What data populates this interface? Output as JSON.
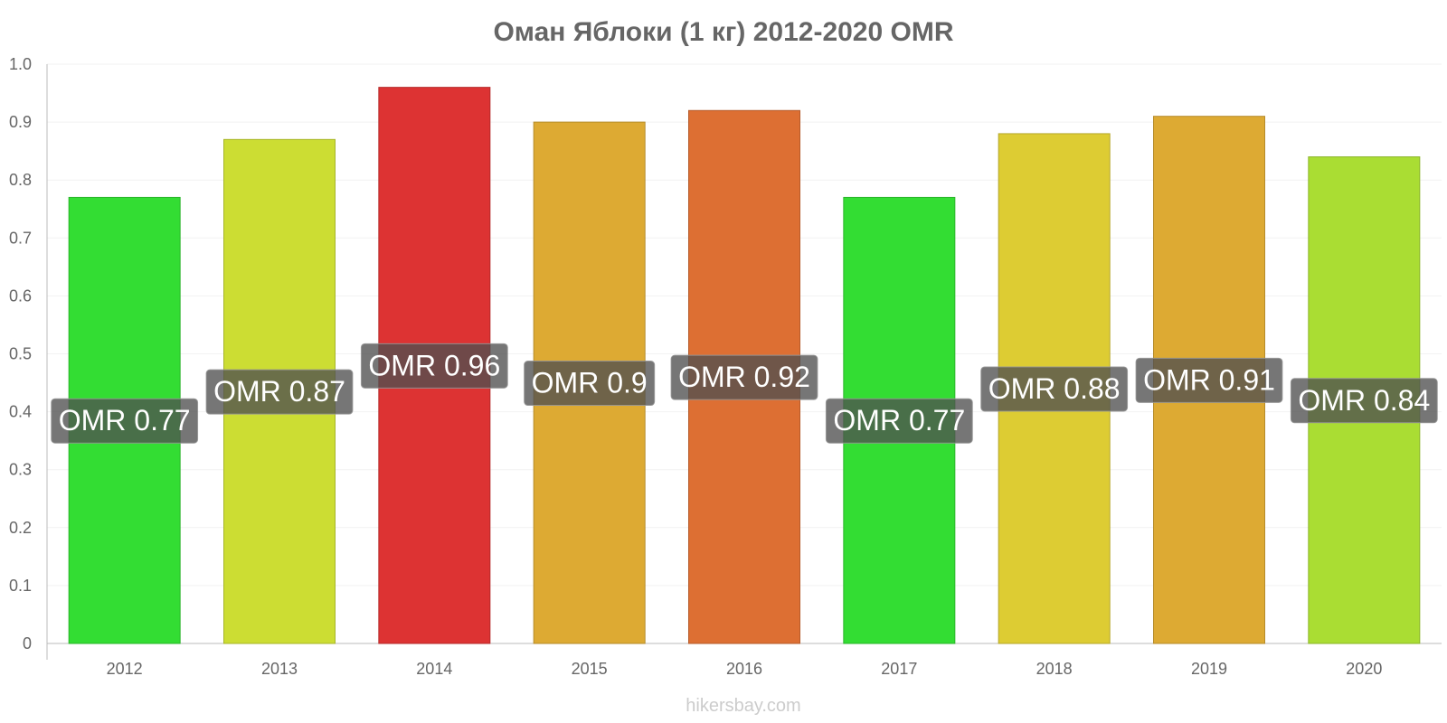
{
  "chart_data": {
    "type": "bar",
    "title": "Оман Яблоки (1 кг) 2012-2020 OMR",
    "categories": [
      "2012",
      "2013",
      "2014",
      "2015",
      "2016",
      "2017",
      "2018",
      "2019",
      "2020"
    ],
    "values": [
      0.77,
      0.87,
      0.96,
      0.9,
      0.92,
      0.77,
      0.88,
      0.91,
      0.84
    ],
    "data_labels": [
      "OMR 0.77",
      "OMR 0.87",
      "OMR 0.96",
      "OMR 0.9",
      "OMR 0.92",
      "OMR 0.77",
      "OMR 0.88",
      "OMR 0.91",
      "OMR 0.84"
    ],
    "colors": [
      "#33dd33",
      "#ccdd33",
      "#dd3333",
      "#ddaa33",
      "#dd6f33",
      "#33dd33",
      "#ddcc33",
      "#ddaa33",
      "#aadd33"
    ],
    "yticks": [
      "0",
      "0.1",
      "0.2",
      "0.3",
      "0.4",
      "0.5",
      "0.6",
      "0.7",
      "0.8",
      "0.9",
      "1.0"
    ],
    "ylim": [
      0,
      1.0
    ],
    "xlabel": "",
    "ylabel": "",
    "grid": true,
    "legend": "none"
  },
  "watermark": "hikersbay.com"
}
